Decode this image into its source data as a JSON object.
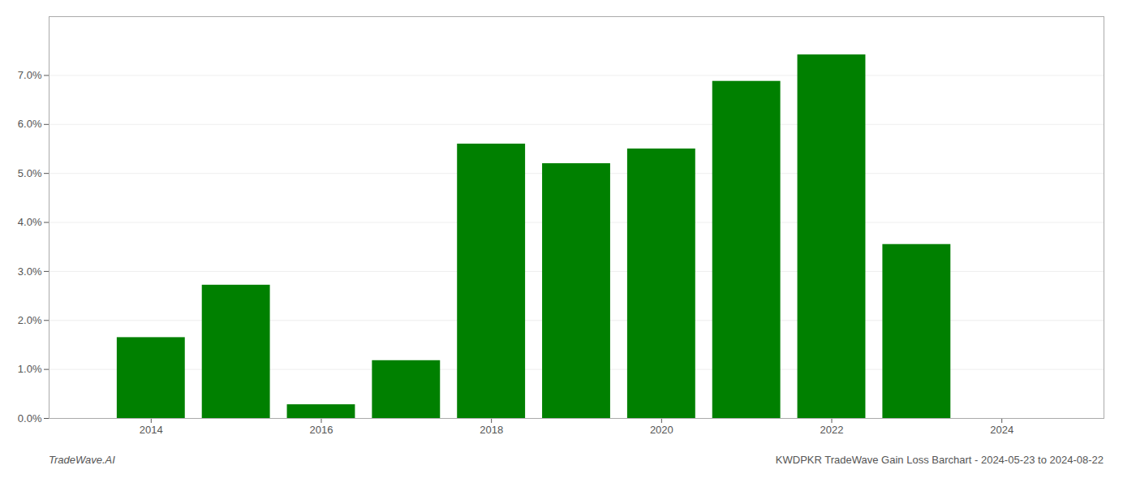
{
  "chart_data": {
    "type": "bar",
    "x": [
      2014,
      2015,
      2016,
      2017,
      2018,
      2019,
      2020,
      2021,
      2022,
      2023
    ],
    "values": [
      0.0165,
      0.0272,
      0.0028,
      0.0118,
      0.056,
      0.052,
      0.055,
      0.0688,
      0.0742,
      0.0355
    ],
    "color": "#008000",
    "xlim": [
      2012.8,
      2025.2
    ],
    "xticks": [
      2014,
      2016,
      2018,
      2020,
      2022,
      2024
    ],
    "ylim": [
      0.0,
      0.082
    ],
    "yticks": [
      {
        "value": 0.0,
        "label": "0.0%"
      },
      {
        "value": 0.01,
        "label": "1.0%"
      },
      {
        "value": 0.02,
        "label": "2.0%"
      },
      {
        "value": 0.03,
        "label": "3.0%"
      },
      {
        "value": 0.04,
        "label": "4.0%"
      },
      {
        "value": 0.05,
        "label": "5.0%"
      },
      {
        "value": 0.06,
        "label": "6.0%"
      },
      {
        "value": 0.07,
        "label": "7.0%"
      }
    ],
    "grid": true,
    "annotations": [
      "TradeWave.AI",
      "KWDPKR TradeWave Gain Loss Barchart - 2024-05-23 to 2024-08-22"
    ]
  }
}
